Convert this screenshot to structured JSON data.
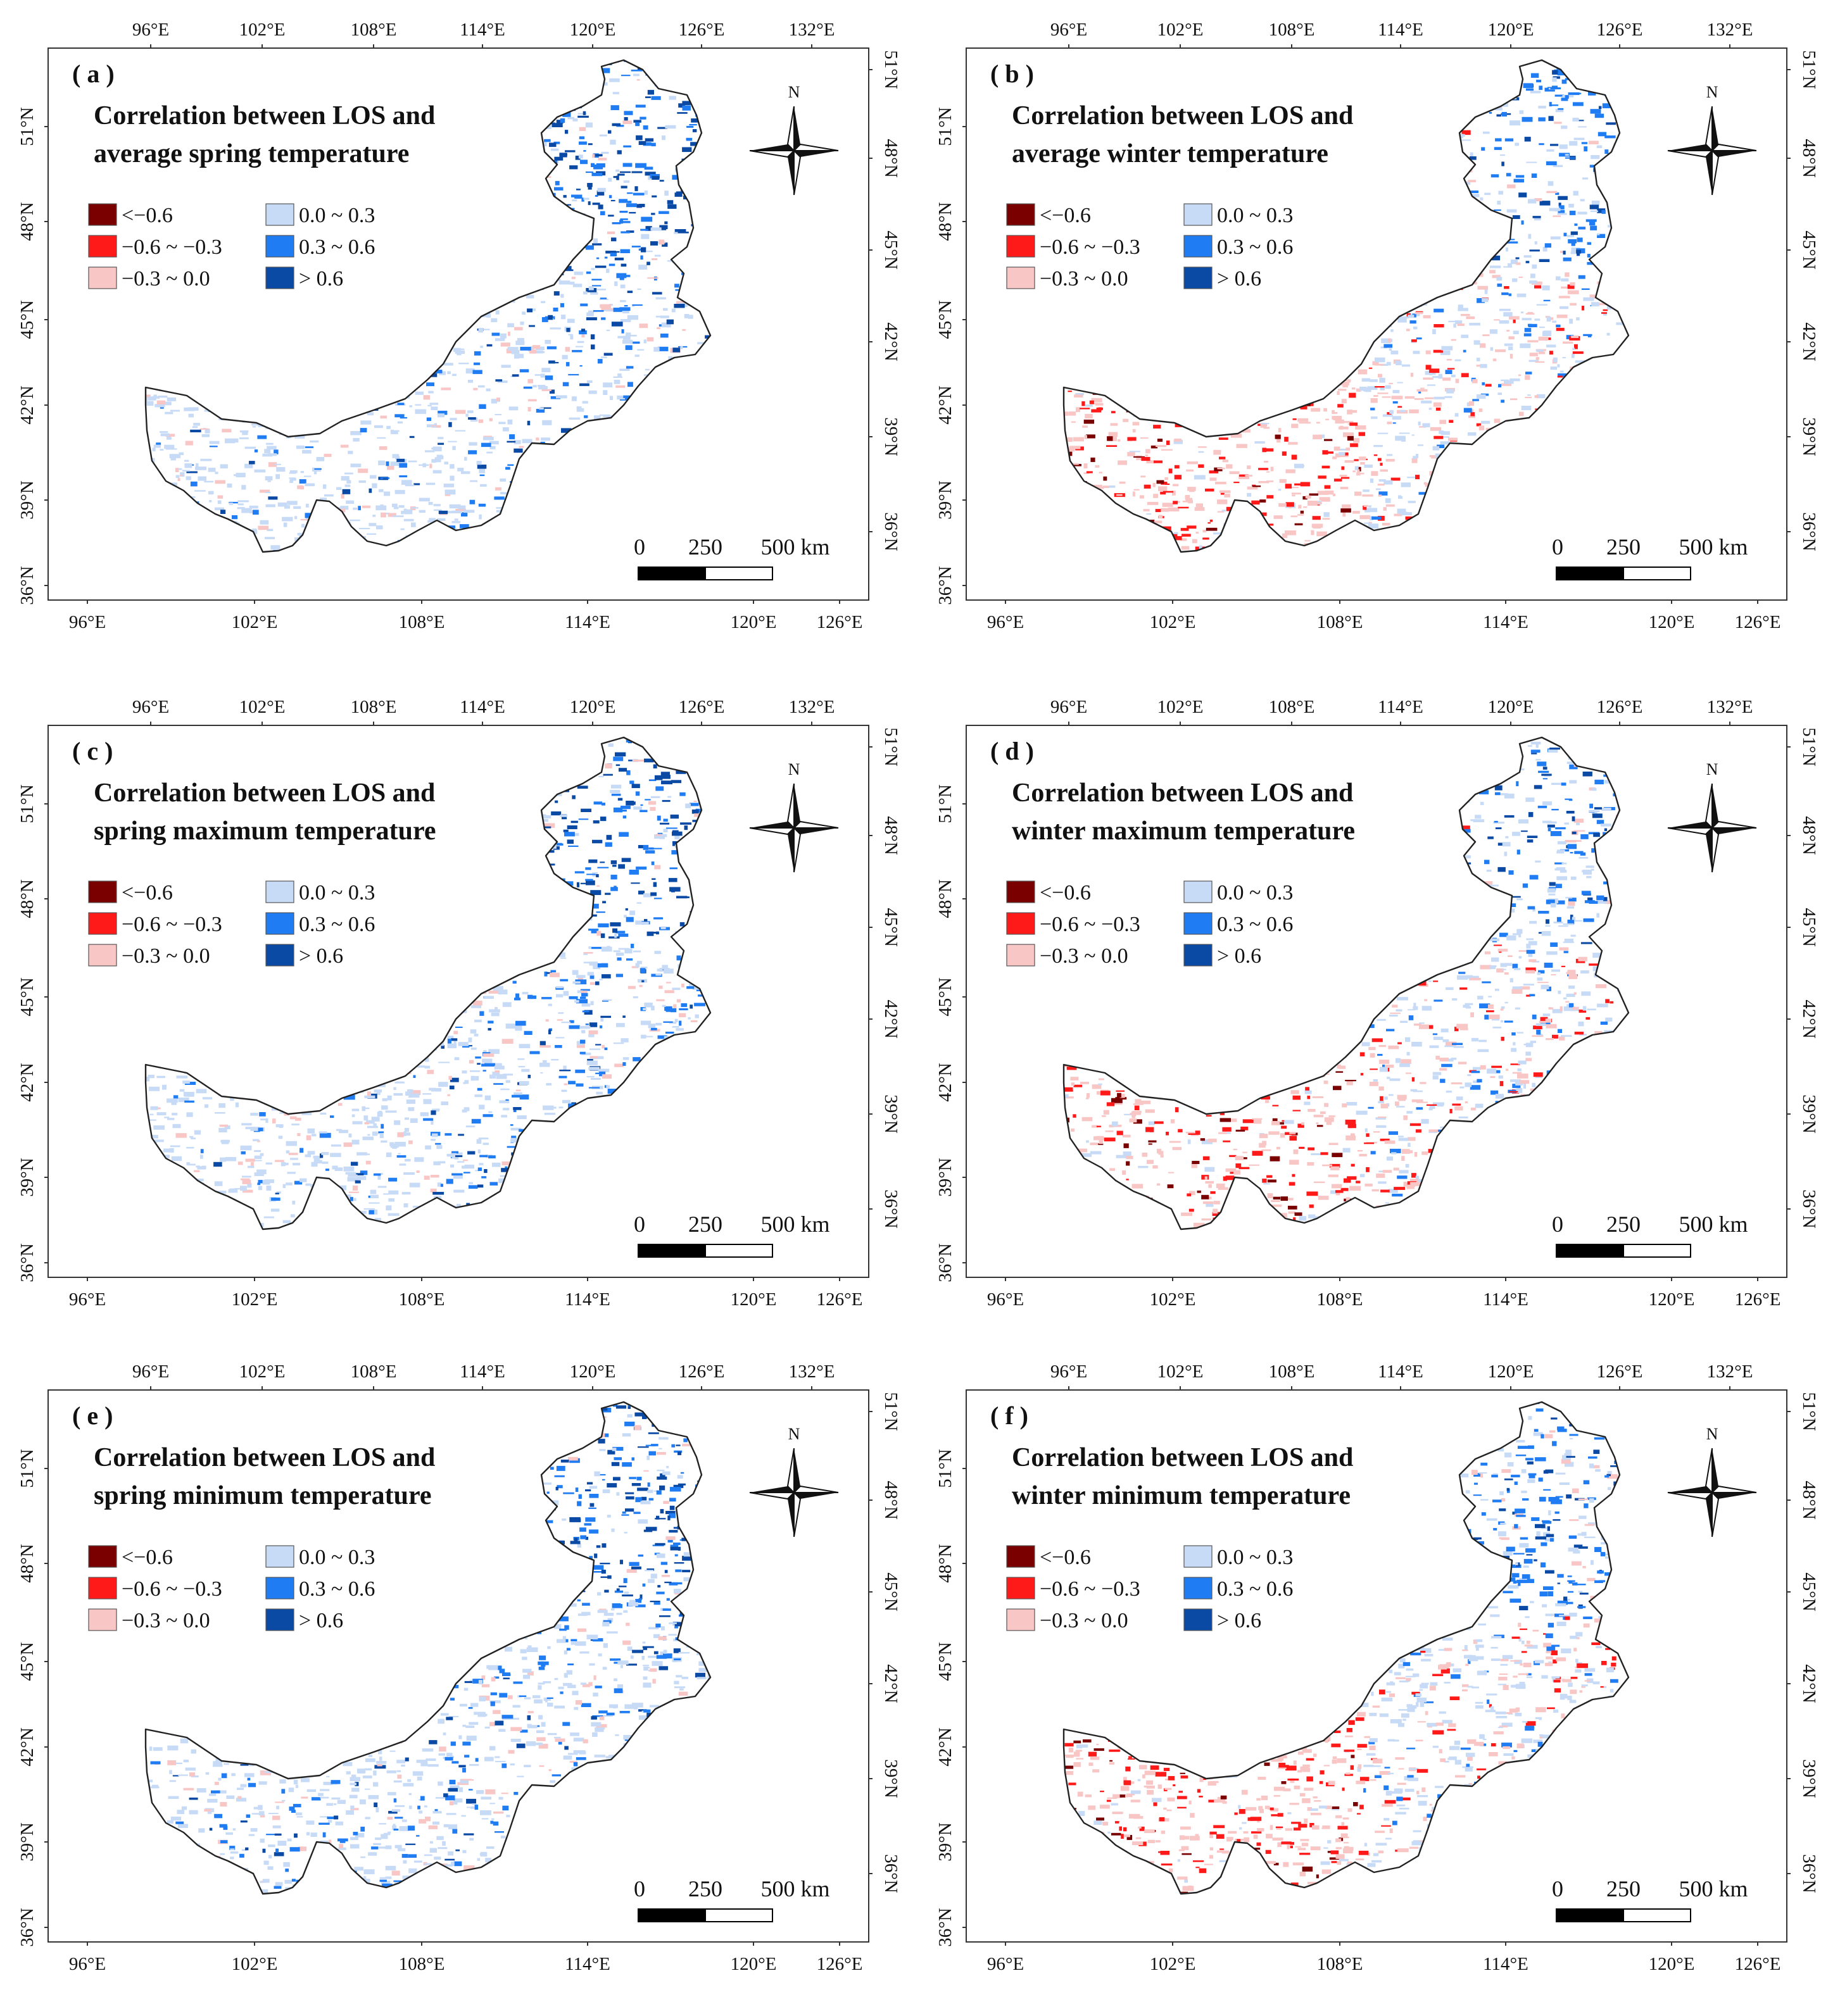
{
  "colors": {
    "neg_strong": "#7a0000",
    "neg_mid": "#ff1a1a",
    "neg_weak": "#f9c6c6",
    "pos_weak": "#c7dbf7",
    "pos_mid": "#1f7cf2",
    "pos_strong": "#0a4aa5",
    "outline": "#222222"
  },
  "legend": {
    "items": [
      {
        "label": "<−0.6",
        "color_key": "neg_strong"
      },
      {
        "label": "−0.6 ~ −0.3",
        "color_key": "neg_mid"
      },
      {
        "label": "−0.3 ~ 0.0",
        "color_key": "neg_weak"
      },
      {
        "label": "0.0 ~ 0.3",
        "color_key": "pos_weak"
      },
      {
        "label": "0.3 ~ 0.6",
        "color_key": "pos_mid"
      },
      {
        "label": "> 0.6",
        "color_key": "pos_strong"
      }
    ]
  },
  "scale_bar": {
    "labels": [
      "0",
      "250",
      "500 km"
    ]
  },
  "compass": {
    "label": "N"
  },
  "axes": {
    "top": [
      "96°E",
      "102°E",
      "108°E",
      "114°E",
      "120°E",
      "126°E",
      "132°E"
    ],
    "bottom": [
      "96°E",
      "102°E",
      "108°E",
      "114°E",
      "120°E",
      "126°E"
    ],
    "left": [
      "51°N",
      "48°N",
      "45°N",
      "42°N",
      "39°N",
      "36°N"
    ],
    "right": [
      "51°N",
      "48°N",
      "45°N",
      "42°N",
      "39°N",
      "36°N"
    ]
  },
  "panels": [
    {
      "letter": "( a )",
      "title1": "Correlation between LOS and",
      "title2": "average spring temperature",
      "season": "spring",
      "variable": "average",
      "dominant": "positive"
    },
    {
      "letter": "( b )",
      "title1": "Correlation between LOS and",
      "title2": "average winter temperature",
      "season": "winter",
      "variable": "average",
      "dominant": "mixed"
    },
    {
      "letter": "( c )",
      "title1": "Correlation between LOS and",
      "title2": "spring maximum temperature",
      "season": "spring",
      "variable": "maximum",
      "dominant": "positive"
    },
    {
      "letter": "( d )",
      "title1": "Correlation between LOS and",
      "title2": "winter maximum temperature",
      "season": "winter",
      "variable": "maximum",
      "dominant": "mixed"
    },
    {
      "letter": "( e )",
      "title1": "Correlation between LOS and",
      "title2": "spring minimum temperature",
      "season": "spring",
      "variable": "minimum",
      "dominant": "positive"
    },
    {
      "letter": "( f )",
      "title1": "Correlation between LOS and",
      "title2": "winter minimum temperature",
      "season": "winter",
      "variable": "minimum",
      "dominant": "mixed"
    }
  ]
}
